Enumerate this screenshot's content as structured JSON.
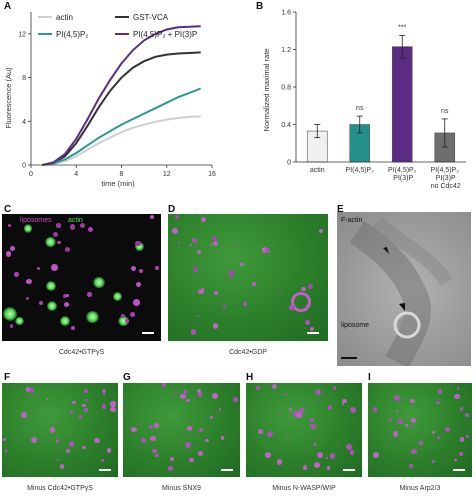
{
  "panels": {
    "A": {
      "label": "A"
    },
    "B": {
      "label": "B"
    },
    "C": {
      "label": "C",
      "legend_liposomes": "liposomes",
      "legend_actin": "actin",
      "caption": "Cdc42•GTPγS"
    },
    "D": {
      "label": "D",
      "caption": "Cdc42•GDP"
    },
    "E": {
      "label": "E",
      "annotation_factin": "F-actin",
      "annotation_liposome": "liposome"
    },
    "F": {
      "label": "F",
      "caption": "Minus Cdc42•GTPγS"
    },
    "G": {
      "label": "G",
      "caption": "Minus SNX9"
    },
    "H": {
      "label": "H",
      "caption": "Minus N-WASP/WIP"
    },
    "I": {
      "label": "I",
      "caption": "Minus Arp2/3"
    }
  },
  "colors": {
    "actin": "#cfcfcf",
    "gst_vca": "#333333",
    "pip2": "#2a9a92",
    "pip2_pi3p": "#5a2d82",
    "bar_actin": "#f0f0f0",
    "bar_pip2": "#25908a",
    "bar_pip2_pi3p": "#5a2d82",
    "bar_no_cdc42": "#6e6e6e"
  },
  "chart_data": [
    {
      "type": "line",
      "xlabel": "time (min)",
      "ylabel": "Fluorescence (Au)",
      "xlim": [
        0,
        16
      ],
      "ylim": [
        0,
        14
      ],
      "xticks": [
        "0",
        "4",
        "8",
        "12",
        "16"
      ],
      "yticks": [
        "0",
        "4",
        "8",
        "12"
      ],
      "legend": [
        "actin",
        "GST-VCA",
        "PI(4,5)P₂",
        "PI(4,5)P₂ + PI(3)P"
      ],
      "series": [
        {
          "name": "actin",
          "color": "#cfcfcf",
          "x": [
            1,
            2,
            3,
            4,
            5,
            6,
            7,
            8,
            9,
            10,
            11,
            12,
            13,
            14,
            15
          ],
          "y": [
            0,
            0.1,
            0.35,
            0.8,
            1.4,
            2.0,
            2.5,
            3.0,
            3.4,
            3.7,
            3.95,
            4.15,
            4.3,
            4.4,
            4.45
          ]
        },
        {
          "name": "GST-VCA",
          "color": "#333333",
          "x": [
            1,
            2,
            3,
            4,
            5,
            6,
            7,
            8,
            9,
            10,
            11,
            12,
            13,
            14,
            15
          ],
          "y": [
            0,
            0.2,
            0.8,
            2.0,
            3.6,
            5.3,
            6.8,
            8.0,
            8.9,
            9.5,
            9.9,
            10.1,
            10.2,
            10.25,
            10.3
          ]
        },
        {
          "name": "PI(4,5)P₂",
          "color": "#2a9a92",
          "x": [
            1,
            2,
            3,
            4,
            5,
            6,
            7,
            8,
            9,
            10,
            11,
            12,
            13,
            14,
            15
          ],
          "y": [
            0,
            0.15,
            0.5,
            1.1,
            1.8,
            2.5,
            3.1,
            3.7,
            4.2,
            4.7,
            5.2,
            5.7,
            6.2,
            6.6,
            7.0
          ]
        },
        {
          "name": "PI(4,5)P₂ + PI(3)P",
          "color": "#5a2d82",
          "x": [
            1,
            2,
            3,
            4,
            5,
            6,
            7,
            8,
            9,
            10,
            11,
            12,
            13,
            14,
            15
          ],
          "y": [
            0,
            0.25,
            1.0,
            2.4,
            4.2,
            6.1,
            7.8,
            9.3,
            10.5,
            11.4,
            12.0,
            12.4,
            12.6,
            12.65,
            12.7
          ]
        }
      ]
    },
    {
      "type": "bar",
      "ylabel": "Normalized maximal rate",
      "ylim": [
        0,
        1.6
      ],
      "yticks": [
        "0",
        "0.4",
        "0.8",
        "1.2",
        "1.6"
      ],
      "categories": [
        "actin",
        "PI(4,5)P₂",
        "PI(4,5)P₂ PI(3)P",
        "PI(4,5)P₂ PI(3)P no Cdc42"
      ],
      "category_lines": [
        [
          "actin"
        ],
        [
          "PI(4,5)P₂"
        ],
        [
          "PI(4,5)P₂",
          "PI(3)P"
        ],
        [
          "PI(4,5)P₂",
          "PI(3)P",
          "no Cdc42"
        ]
      ],
      "values": [
        0.33,
        0.4,
        1.23,
        0.31
      ],
      "errors": [
        0.07,
        0.09,
        0.12,
        0.15
      ],
      "significance": [
        "",
        "ns",
        "***",
        "ns"
      ],
      "colors": [
        "#f0f0f0",
        "#25908a",
        "#5a2d82",
        "#6e6e6e"
      ]
    }
  ]
}
